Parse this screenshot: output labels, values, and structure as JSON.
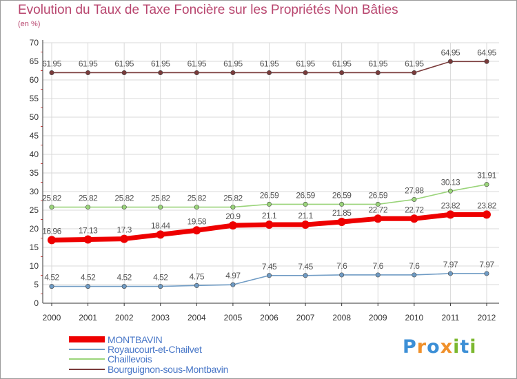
{
  "colors": {
    "title": "#b8456e",
    "axis": "#333333",
    "grid": "#d9d9d9",
    "label": "#555555"
  },
  "logo": {
    "text": "Proxiti",
    "letters": [
      "P",
      "r",
      "o",
      "x",
      "i",
      "t",
      "i"
    ],
    "letter_colors": [
      "#3c8fd6",
      "#f0902a",
      "#3c8fd6",
      "#f0902a",
      "#7cb82f",
      "#3c8fd6",
      "#7cb82f"
    ]
  },
  "chart_data": {
    "type": "line",
    "title": "Evolution du Taux de Taxe Foncière sur les Propriétés Non Bâties",
    "ylabel": "(en %)",
    "xlabel": "",
    "ylim": [
      0,
      70
    ],
    "yticks": [
      "0",
      "5",
      "10",
      "15",
      "20",
      "25",
      "30",
      "35",
      "40",
      "45",
      "50",
      "55",
      "60",
      "65",
      "70"
    ],
    "grid": true,
    "categories": [
      "2000",
      "2001",
      "2002",
      "2003",
      "2004",
      "2005",
      "2006",
      "2007",
      "2008",
      "2009",
      "2010",
      "2011",
      "2012"
    ],
    "series": [
      {
        "name": "MONTBAVIN",
        "color": "#ee0000",
        "values": [
          16.96,
          17.13,
          17.3,
          18.44,
          19.58,
          20.9,
          21.1,
          21.1,
          21.85,
          22.72,
          22.72,
          23.82,
          23.82
        ],
        "labels": [
          "16.96",
          "17.13",
          "17.3",
          "18.44",
          "19.58",
          "20.9",
          "21.1",
          "21.1",
          "21.85",
          "22.72",
          "22.72",
          "23.82",
          "23.82"
        ]
      },
      {
        "name": "Royaucourt-et-Chailvet",
        "color": "#6f9bc4",
        "values": [
          4.52,
          4.52,
          4.52,
          4.52,
          4.75,
          4.97,
          7.45,
          7.45,
          7.6,
          7.6,
          7.6,
          7.97,
          7.97
        ],
        "labels": [
          "4.52",
          "4.52",
          "4.52",
          "4.52",
          "4.75",
          "4.97",
          "7.45",
          "7.45",
          "7.6",
          "7.6",
          "7.6",
          "7.97",
          "7.97"
        ]
      },
      {
        "name": "Chaillevois",
        "color": "#9ad47a",
        "values": [
          25.82,
          25.82,
          25.82,
          25.82,
          25.82,
          25.82,
          26.59,
          26.59,
          26.59,
          26.59,
          27.88,
          30.13,
          31.91
        ],
        "labels": [
          "25.82",
          "25.82",
          "25.82",
          "25.82",
          "25.82",
          "25.82",
          "26.59",
          "26.59",
          "26.59",
          "26.59",
          "27.88",
          "30.13",
          "31.91"
        ]
      },
      {
        "name": "Bourguignon-sous-Montbavin",
        "color": "#7a3b3b",
        "values": [
          61.95,
          61.95,
          61.95,
          61.95,
          61.95,
          61.95,
          61.95,
          61.95,
          61.95,
          61.95,
          61.95,
          64.95,
          64.95
        ],
        "labels": [
          "61.95",
          "61.95",
          "61.95",
          "61.95",
          "61.95",
          "61.95",
          "61.95",
          "61.95",
          "61.95",
          "61.95",
          "61.95",
          "64.95",
          "64.95"
        ]
      }
    ],
    "legend_position": "bottom-left"
  }
}
